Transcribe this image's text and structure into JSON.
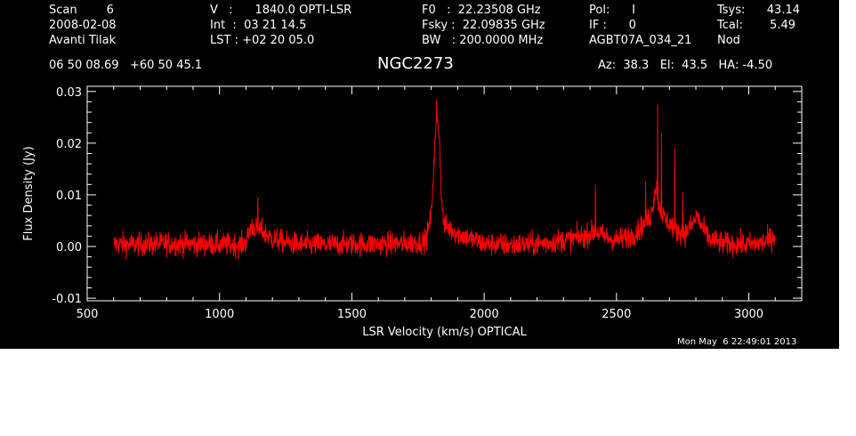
{
  "header": {
    "col1": [
      "Scan        6",
      "2008-02-08",
      "Avanti Tilak"
    ],
    "col2": [
      "V   :      1840.0 OPTI-LSR",
      "Int  :  03 21 14.5",
      "LST : +02 20 05.0"
    ],
    "col3": [
      "F0   :  22.23508 GHz",
      "Fsky :  22.09835 GHz",
      "BW   : 200.0000 MHz"
    ],
    "col4": [
      "Pol:      I",
      "IF :      0",
      "AGBT07A_034_21"
    ],
    "col5_labels": [
      "Tsys:",
      "Tcal:",
      "Nod"
    ],
    "col5_values": [
      "43.14",
      "5.49",
      ""
    ],
    "coords": "06 50 08.69   +60 50 45.1",
    "source": "NGC2273",
    "azelha": "Az:  38.3   El:  43.5   HA: -4.50",
    "timestamp": "Mon May  6 22:49:01 2013"
  },
  "chart_data": {
    "type": "line",
    "title": "NGC2273",
    "xlabel": "LSR Velocity (km/s) OPTICAL",
    "ylabel": "Flux Density (Jy)",
    "xlim": [
      500,
      3200
    ],
    "ylim": [
      -0.0105,
      0.031
    ],
    "xticks": [
      500,
      1000,
      1500,
      2000,
      2500,
      3000
    ],
    "yticks": [
      -0.01,
      0.0,
      0.01,
      0.02,
      0.03
    ],
    "ytick_labels": [
      "-0.01",
      "0.00",
      "0.01",
      "0.02",
      "0.03"
    ],
    "grid": false,
    "series": [
      {
        "color": "#ff0000",
        "noise_sigma": 0.0016,
        "x_start": 600,
        "x_end": 3100,
        "points": [
          [
            600,
            0.0005
          ],
          [
            700,
            0.0004
          ],
          [
            800,
            0.0006
          ],
          [
            900,
            0.0005
          ],
          [
            1000,
            0.0004
          ],
          [
            1080,
            0.0003
          ],
          [
            1100,
            0.0008
          ],
          [
            1120,
            0.004
          ],
          [
            1140,
            0.0035
          ],
          [
            1160,
            0.003
          ],
          [
            1180,
            0.0022
          ],
          [
            1200,
            0.0015
          ],
          [
            1250,
            0.0008
          ],
          [
            1300,
            0.0004
          ],
          [
            1400,
            0.0003
          ],
          [
            1500,
            0.0005
          ],
          [
            1600,
            0.0005
          ],
          [
            1700,
            0.0006
          ],
          [
            1750,
            0.0008
          ],
          [
            1780,
            0.0012
          ],
          [
            1800,
            0.006
          ],
          [
            1812,
            0.018
          ],
          [
            1822,
            0.026
          ],
          [
            1830,
            0.022
          ],
          [
            1840,
            0.008
          ],
          [
            1850,
            0.004
          ],
          [
            1870,
            0.0035
          ],
          [
            1900,
            0.0025
          ],
          [
            1950,
            0.0015
          ],
          [
            2000,
            0.0005
          ],
          [
            2100,
            0.0003
          ],
          [
            2200,
            0.0005
          ],
          [
            2300,
            0.0012
          ],
          [
            2380,
            0.002
          ],
          [
            2420,
            0.003
          ],
          [
            2450,
            0.002
          ],
          [
            2500,
            0.0012
          ],
          [
            2560,
            0.0022
          ],
          [
            2600,
            0.004
          ],
          [
            2630,
            0.006
          ],
          [
            2650,
            0.012
          ],
          [
            2660,
            0.008
          ],
          [
            2680,
            0.0055
          ],
          [
            2700,
            0.0045
          ],
          [
            2730,
            0.003
          ],
          [
            2760,
            0.0025
          ],
          [
            2790,
            0.0045
          ],
          [
            2805,
            0.006
          ],
          [
            2820,
            0.004
          ],
          [
            2850,
            0.0015
          ],
          [
            2900,
            0.0006
          ],
          [
            3000,
            0.0004
          ],
          [
            3060,
            0.0008
          ],
          [
            3100,
            0.0022
          ]
        ],
        "spikes": [
          [
            1145,
            0.0095
          ],
          [
            1820,
            0.0285
          ],
          [
            2420,
            0.012
          ],
          [
            2655,
            0.0275
          ],
          [
            2670,
            0.022
          ],
          [
            2720,
            0.019
          ],
          [
            2610,
            0.0125
          ],
          [
            2750,
            0.0105
          ]
        ]
      }
    ]
  }
}
